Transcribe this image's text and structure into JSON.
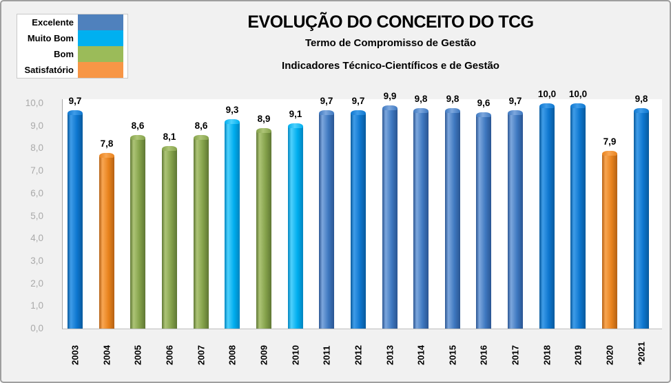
{
  "window": {
    "background_color": "#f1f1f1",
    "border_color": "#9e9e9e"
  },
  "header": {
    "title": "EVOLUÇÃO DO CONCEITO DO TCG",
    "subtitle1": "Termo de Compromisso de Gestão",
    "subtitle2": "Indicadores Técnico-Científicos e de Gestão"
  },
  "legend": {
    "position": "top-left",
    "items": [
      {
        "label": "Excelente",
        "color": "#4f81bd",
        "color_key": "excelente"
      },
      {
        "label": "Muito Bom",
        "color": "#00b0f0",
        "color_key": "muito_bom"
      },
      {
        "label": "Bom",
        "color": "#9bbb59",
        "color_key": "bom"
      },
      {
        "label": "Satisfatório",
        "color": "#f79646",
        "color_key": "satisfatorio"
      }
    ]
  },
  "palette": {
    "excelente": {
      "swatch": "#4f81bd",
      "base": "#3e78c0",
      "light": "#7da7dd",
      "dark": "#2a5592"
    },
    "excelente_bright": {
      "swatch": "#0d76cf",
      "base": "#0d76cf",
      "light": "#3f9ce8",
      "dark": "#085a9d"
    },
    "muito_bom": {
      "swatch": "#00b0f0",
      "base": "#00aeef",
      "light": "#4fd1fc",
      "dark": "#0084bf"
    },
    "bom": {
      "swatch": "#9bbb59",
      "base": "#84a14a",
      "light": "#adc476",
      "dark": "#5f7734"
    },
    "satisfatorio": {
      "swatch": "#f79646",
      "base": "#e8821c",
      "light": "#f8a653",
      "dark": "#b56114"
    }
  },
  "chart_data": {
    "type": "bar",
    "title": "EVOLUÇÃO DO CONCEITO DO TCG",
    "subtitle": "Termo de Compromisso de Gestão",
    "note": "Indicadores Técnico-Científicos e de Gestão",
    "categories": [
      "2003",
      "2004",
      "2005",
      "2006",
      "2007",
      "2008",
      "2009",
      "2010",
      "2011",
      "2012",
      "2013",
      "2014",
      "2015",
      "2016",
      "2017",
      "2018",
      "2019",
      "2020",
      "*2021"
    ],
    "values": [
      9.7,
      7.8,
      8.6,
      8.1,
      8.6,
      9.3,
      8.9,
      9.1,
      9.7,
      9.7,
      9.9,
      9.8,
      9.8,
      9.6,
      9.7,
      10.0,
      10.0,
      7.9,
      9.8
    ],
    "value_labels": [
      "9,7",
      "7,8",
      "8,6",
      "8,1",
      "8,6",
      "9,3",
      "8,9",
      "9,1",
      "9,7",
      "9,7",
      "9,9",
      "9,8",
      "9,8",
      "9,6",
      "9,7",
      "10,0",
      "10,0",
      "7,9",
      "9,8"
    ],
    "bar_color_keys": [
      "excelente_bright",
      "satisfatorio",
      "bom",
      "bom",
      "bom",
      "muito_bom",
      "bom",
      "muito_bom",
      "excelente",
      "excelente_bright",
      "excelente",
      "excelente",
      "excelente",
      "excelente",
      "excelente",
      "excelente_bright",
      "excelente_bright",
      "satisfatorio",
      "excelente_bright"
    ],
    "xlabel": "",
    "ylabel": "",
    "ylim": [
      0,
      10
    ],
    "ytick_labels": [
      "0,0",
      "1,0",
      "2,0",
      "3,0",
      "4,0",
      "5,0",
      "6,0",
      "7,0",
      "8,0",
      "9,0",
      "10,0"
    ],
    "grid": "off",
    "legend_position": "top-left",
    "legend_categories": [
      "Excelente",
      "Muito Bom",
      "Bom",
      "Satisfatório"
    ]
  }
}
